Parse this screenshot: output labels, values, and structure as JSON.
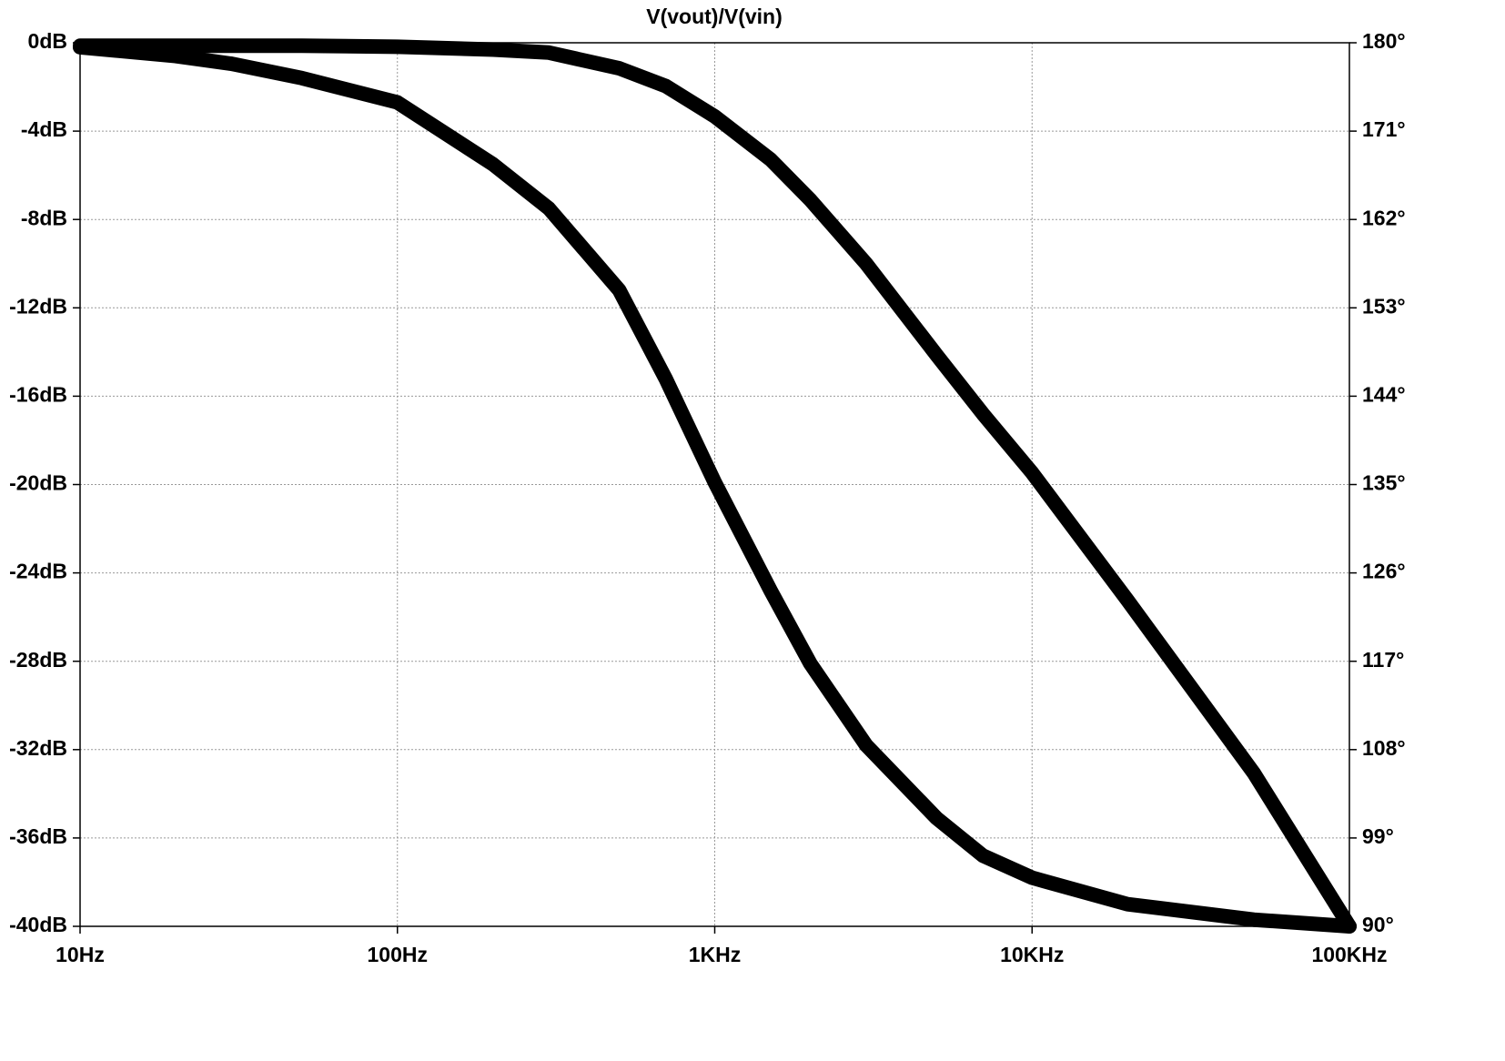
{
  "chart_data": {
    "type": "line",
    "title": "V(vout)/V(vin)",
    "x": [
      10,
      20,
      30,
      50,
      100,
      200,
      300,
      500,
      700,
      1000,
      1500,
      2000,
      3000,
      5000,
      7000,
      10000,
      20000,
      50000,
      100000
    ],
    "xscale": "log",
    "xlim": [
      10,
      100000
    ],
    "xticks": [
      {
        "value": 10,
        "label": "10Hz"
      },
      {
        "value": 100,
        "label": "100Hz"
      },
      {
        "value": 1000,
        "label": "1KHz"
      },
      {
        "value": 10000,
        "label": "10KHz"
      },
      {
        "value": 100000,
        "label": "100KHz"
      }
    ],
    "ylim": [
      -40,
      0
    ],
    "yticks": [
      {
        "value": 0,
        "label": "0dB"
      },
      {
        "value": -4,
        "label": "-4dB"
      },
      {
        "value": -8,
        "label": "-8dB"
      },
      {
        "value": -12,
        "label": "-12dB"
      },
      {
        "value": -16,
        "label": "-16dB"
      },
      {
        "value": -20,
        "label": "-20dB"
      },
      {
        "value": -24,
        "label": "-24dB"
      },
      {
        "value": -28,
        "label": "-28dB"
      },
      {
        "value": -32,
        "label": "-32dB"
      },
      {
        "value": -36,
        "label": "-36dB"
      },
      {
        "value": -40,
        "label": "-40dB"
      }
    ],
    "y2lim": [
      90,
      180
    ],
    "y2ticks": [
      {
        "value": 180,
        "label": "180°"
      },
      {
        "value": 171,
        "label": "171°"
      },
      {
        "value": 162,
        "label": "162°"
      },
      {
        "value": 153,
        "label": "153°"
      },
      {
        "value": 144,
        "label": "144°"
      },
      {
        "value": 135,
        "label": "135°"
      },
      {
        "value": 126,
        "label": "126°"
      },
      {
        "value": 117,
        "label": "117°"
      },
      {
        "value": 108,
        "label": "108°"
      },
      {
        "value": 99,
        "label": "99°"
      },
      {
        "value": 90,
        "label": "90°"
      }
    ],
    "grid": true,
    "series": [
      {
        "color": "#000000",
        "values": [
          -0.2,
          -0.6,
          -0.95,
          -1.6,
          -2.7,
          -5.5,
          -7.5,
          -11.2,
          -15.2,
          -19.9,
          -24.8,
          -28.1,
          -31.8,
          -35.1,
          -36.8,
          -37.8,
          -39.0,
          -39.7,
          -40.0
        ]
      },
      {
        "color": "#000000",
        "axis": "y2",
        "values": [
          179.7,
          179.7,
          179.7,
          179.7,
          179.6,
          179.3,
          179.0,
          177.4,
          175.6,
          172.5,
          168.1,
          164.0,
          157.5,
          148.2,
          142.2,
          136.2,
          123.2,
          105.6,
          90
        ]
      }
    ]
  }
}
